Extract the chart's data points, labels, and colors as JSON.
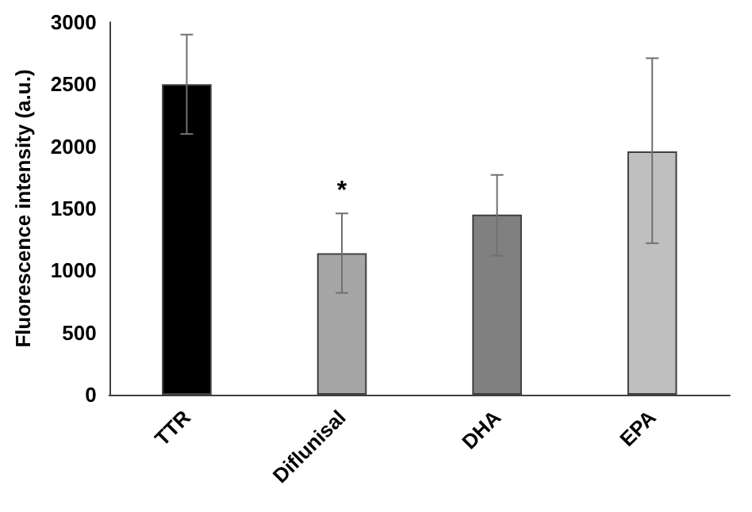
{
  "chart_data": {
    "type": "bar",
    "ylabel": "Fluorescence intensity (a.u.)",
    "categories": [
      "TTR",
      "Diflunisal",
      "DHA",
      "EPA"
    ],
    "values": [
      2500,
      1140,
      1450,
      1960
    ],
    "colors": [
      "#000000",
      "#a6a6a6",
      "#808080",
      "#bfbfbf"
    ],
    "errors": [
      [
        2100,
        2900
      ],
      [
        820,
        1460
      ],
      [
        1120,
        1770
      ],
      [
        1220,
        2710
      ]
    ],
    "ylim": [
      0,
      3000
    ],
    "yticks": [
      0,
      500,
      1000,
      1500,
      2000,
      2500,
      3000
    ],
    "grid": false,
    "annotations": [
      {
        "text": "*",
        "x": "Diflunisal",
        "y": 1460
      }
    ]
  }
}
